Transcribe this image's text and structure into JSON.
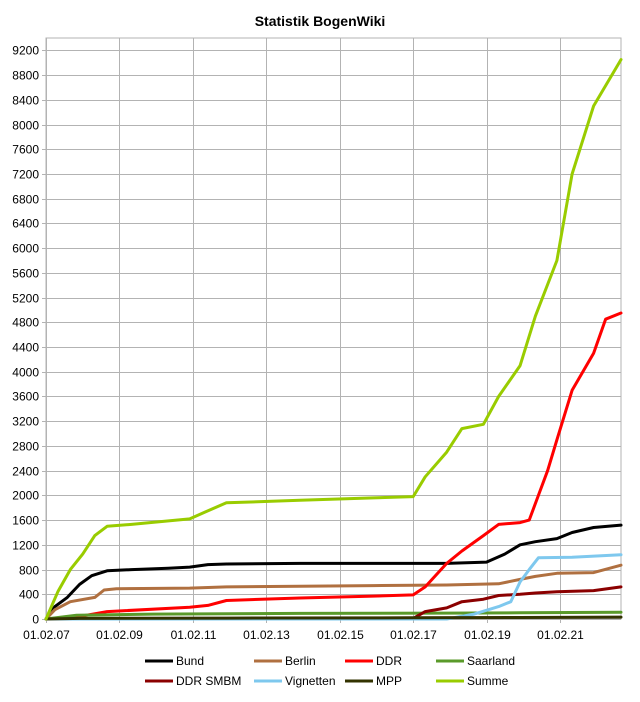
{
  "chart_data": {
    "type": "line",
    "title": "Statistik BogenWiki",
    "xlabel": "",
    "ylabel": "",
    "ylim": [
      0,
      9400
    ],
    "xlim": [
      "2007-02-01",
      "2022-10-01"
    ],
    "grid": true,
    "legend_position": "bottom",
    "y_ticks": [
      0,
      400,
      800,
      1200,
      1600,
      2000,
      2400,
      2800,
      3200,
      3600,
      4000,
      4400,
      4800,
      5200,
      5600,
      6000,
      6400,
      6800,
      7200,
      7600,
      8000,
      8400,
      8800,
      9200
    ],
    "x_ticks": [
      {
        "label": "01.02.07",
        "date": "2007-02-01"
      },
      {
        "label": "01.02.09",
        "date": "2009-02-01"
      },
      {
        "label": "01.02.11",
        "date": "2011-02-01"
      },
      {
        "label": "01.02.13",
        "date": "2013-02-01"
      },
      {
        "label": "01.02.15",
        "date": "2015-02-01"
      },
      {
        "label": "01.02.17",
        "date": "2017-02-01"
      },
      {
        "label": "01.02.19",
        "date": "2019-02-01"
      },
      {
        "label": "01.02.21",
        "date": "2021-02-01"
      }
    ],
    "series": [
      {
        "name": "Bund",
        "color": "#000000",
        "points": [
          [
            "2007-02-01",
            0
          ],
          [
            "2007-05-01",
            200
          ],
          [
            "2007-09-01",
            350
          ],
          [
            "2008-01-01",
            560
          ],
          [
            "2008-05-01",
            700
          ],
          [
            "2008-10-01",
            780
          ],
          [
            "2009-06-01",
            800
          ],
          [
            "2010-06-01",
            820
          ],
          [
            "2011-01-01",
            840
          ],
          [
            "2011-07-01",
            880
          ],
          [
            "2012-01-01",
            890
          ],
          [
            "2014-01-01",
            900
          ],
          [
            "2016-01-01",
            900
          ],
          [
            "2018-01-01",
            900
          ],
          [
            "2019-02-01",
            920
          ],
          [
            "2019-08-01",
            1050
          ],
          [
            "2020-01-01",
            1200
          ],
          [
            "2020-06-01",
            1250
          ],
          [
            "2021-01-01",
            1300
          ],
          [
            "2021-06-01",
            1400
          ],
          [
            "2022-01-01",
            1480
          ],
          [
            "2022-10-01",
            1520
          ]
        ]
      },
      {
        "name": "Berlin",
        "color": "#b07040",
        "points": [
          [
            "2007-02-01",
            0
          ],
          [
            "2007-05-01",
            150
          ],
          [
            "2007-10-01",
            280
          ],
          [
            "2008-06-01",
            350
          ],
          [
            "2008-09-01",
            470
          ],
          [
            "2009-01-01",
            490
          ],
          [
            "2011-01-01",
            500
          ],
          [
            "2012-01-01",
            520
          ],
          [
            "2014-01-01",
            530
          ],
          [
            "2016-01-01",
            540
          ],
          [
            "2018-01-01",
            550
          ],
          [
            "2019-06-01",
            570
          ],
          [
            "2020-01-01",
            640
          ],
          [
            "2020-06-01",
            690
          ],
          [
            "2021-01-01",
            740
          ],
          [
            "2022-01-01",
            750
          ],
          [
            "2022-10-01",
            870
          ]
        ]
      },
      {
        "name": "DDR",
        "color": "#ff0000",
        "points": [
          [
            "2007-02-01",
            0
          ],
          [
            "2008-01-01",
            40
          ],
          [
            "2008-10-01",
            120
          ],
          [
            "2011-01-01",
            190
          ],
          [
            "2011-07-01",
            220
          ],
          [
            "2012-01-01",
            300
          ],
          [
            "2014-01-01",
            340
          ],
          [
            "2016-01-01",
            370
          ],
          [
            "2017-02-01",
            390
          ],
          [
            "2017-06-01",
            520
          ],
          [
            "2018-01-01",
            900
          ],
          [
            "2018-06-01",
            1100
          ],
          [
            "2019-01-01",
            1350
          ],
          [
            "2019-06-01",
            1530
          ],
          [
            "2020-01-01",
            1560
          ],
          [
            "2020-04-01",
            1600
          ],
          [
            "2020-07-01",
            2000
          ],
          [
            "2020-10-01",
            2400
          ],
          [
            "2021-01-01",
            2900
          ],
          [
            "2021-06-01",
            3700
          ],
          [
            "2022-01-01",
            4300
          ],
          [
            "2022-05-01",
            4850
          ],
          [
            "2022-10-01",
            4950
          ]
        ]
      },
      {
        "name": "Saarland",
        "color": "#5a9a2a",
        "points": [
          [
            "2007-02-01",
            0
          ],
          [
            "2007-12-01",
            60
          ],
          [
            "2010-01-01",
            80
          ],
          [
            "2014-01-01",
            90
          ],
          [
            "2018-01-01",
            95
          ],
          [
            "2020-01-01",
            100
          ],
          [
            "2022-10-01",
            110
          ]
        ]
      },
      {
        "name": "DDR SMBM",
        "color": "#8b0000",
        "points": [
          [
            "2007-02-01",
            0
          ],
          [
            "2017-02-01",
            10
          ],
          [
            "2017-06-01",
            120
          ],
          [
            "2018-01-01",
            180
          ],
          [
            "2018-06-01",
            280
          ],
          [
            "2019-01-01",
            320
          ],
          [
            "2019-06-01",
            380
          ],
          [
            "2020-01-01",
            400
          ],
          [
            "2020-06-01",
            420
          ],
          [
            "2021-01-01",
            440
          ],
          [
            "2022-01-01",
            460
          ],
          [
            "2022-10-01",
            520
          ]
        ]
      },
      {
        "name": "Vignetten",
        "color": "#7ec8ee",
        "points": [
          [
            "2007-02-01",
            0
          ],
          [
            "2018-01-01",
            0
          ],
          [
            "2018-10-01",
            80
          ],
          [
            "2019-06-01",
            200
          ],
          [
            "2019-10-01",
            280
          ],
          [
            "2020-01-01",
            600
          ],
          [
            "2020-04-01",
            800
          ],
          [
            "2020-07-01",
            990
          ],
          [
            "2021-06-01",
            1000
          ],
          [
            "2022-10-01",
            1040
          ]
        ]
      },
      {
        "name": "MPP",
        "color": "#333300",
        "points": [
          [
            "2007-02-01",
            0
          ],
          [
            "2008-01-01",
            10
          ],
          [
            "2012-01-01",
            15
          ],
          [
            "2017-01-01",
            20
          ],
          [
            "2020-01-01",
            25
          ],
          [
            "2022-10-01",
            30
          ]
        ]
      },
      {
        "name": "Summe",
        "color": "#99cc00",
        "points": [
          [
            "2007-02-01",
            0
          ],
          [
            "2007-06-01",
            450
          ],
          [
            "2007-10-01",
            800
          ],
          [
            "2008-02-01",
            1050
          ],
          [
            "2008-06-01",
            1350
          ],
          [
            "2008-10-01",
            1500
          ],
          [
            "2009-06-01",
            1530
          ],
          [
            "2011-01-01",
            1620
          ],
          [
            "2011-06-01",
            1730
          ],
          [
            "2012-01-01",
            1880
          ],
          [
            "2014-01-01",
            1920
          ],
          [
            "2016-01-01",
            1960
          ],
          [
            "2017-02-01",
            1980
          ],
          [
            "2017-06-01",
            2300
          ],
          [
            "2018-01-01",
            2700
          ],
          [
            "2018-06-01",
            3080
          ],
          [
            "2019-01-01",
            3150
          ],
          [
            "2019-06-01",
            3600
          ],
          [
            "2020-01-01",
            4100
          ],
          [
            "2020-06-01",
            4900
          ],
          [
            "2021-01-01",
            5800
          ],
          [
            "2021-06-01",
            7200
          ],
          [
            "2022-01-01",
            8300
          ],
          [
            "2022-10-01",
            9050
          ]
        ]
      }
    ]
  }
}
